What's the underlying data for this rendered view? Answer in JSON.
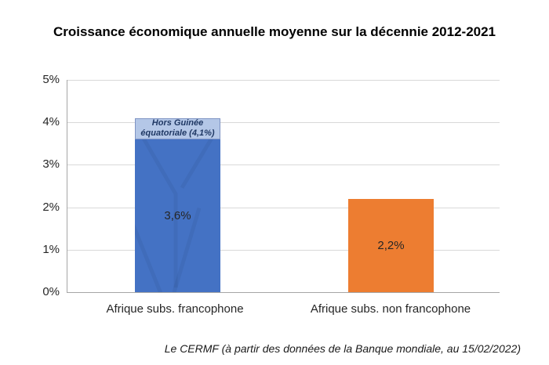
{
  "chart_data": {
    "type": "bar",
    "title": "Croissance économique annuelle moyenne sur la décennie 2012-2021",
    "categories": [
      "Afrique subs. francophone",
      "Afrique subs. non francophone"
    ],
    "values": [
      3.6,
      2.2
    ],
    "value_labels": [
      "3,6%",
      "2,2%"
    ],
    "bar_colors": [
      "#4472C4",
      "#ED7D31"
    ],
    "annotation": {
      "text": "Hors Guinée équatoriale (4,1%)",
      "value": 4.1,
      "fill": "#B4C7E7",
      "border": "#7F94C4",
      "text_color": "#1F3864"
    },
    "y_ticks": [
      "5%",
      "4%",
      "3%",
      "2%",
      "1%",
      "0%"
    ],
    "ylim": [
      0,
      5
    ],
    "grid": true,
    "legend": "none",
    "xlabel": "",
    "ylabel": "",
    "source_note": "Le CERMF (à partir des données de la Banque mondiale, au 15/02/2022)",
    "colors": {
      "gridline": "#D9D9D9",
      "axis_line": "#A6A6A6",
      "label_text": "#262626",
      "title_text": "#000000"
    }
  }
}
